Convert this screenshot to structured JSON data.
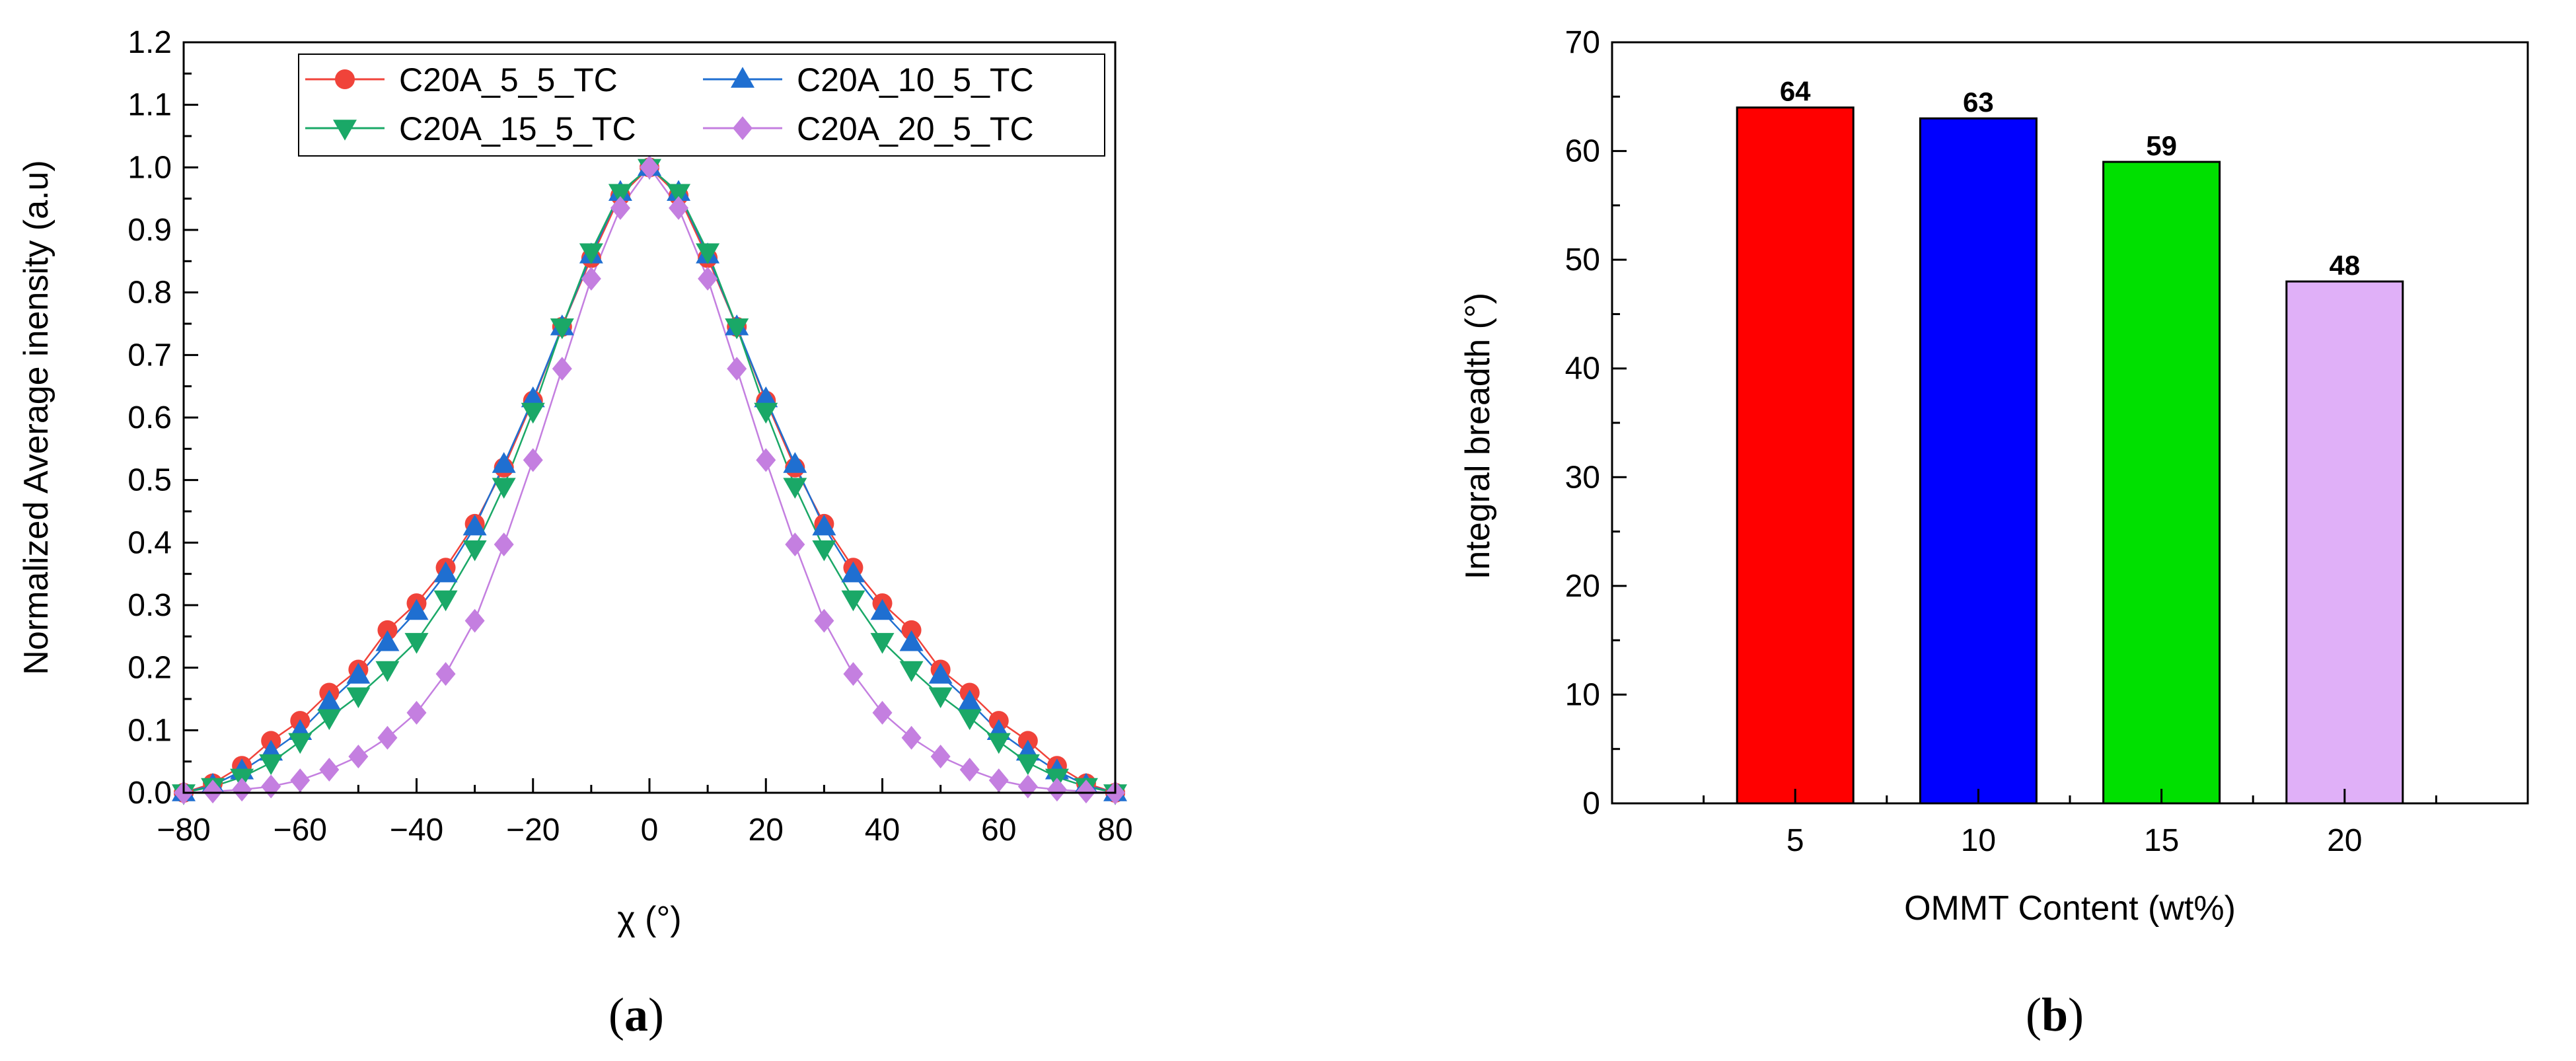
{
  "chart_data": [
    {
      "type": "line",
      "panel_label": {
        "open": "(",
        "letter": "a",
        "close": ")"
      },
      "xlabel": "χ (°)",
      "ylabel": "Normalized Average inensity (a.u)",
      "xlim": [
        -80,
        80
      ],
      "ylim": [
        0,
        1.2
      ],
      "x_ticks": [
        "−80",
        "−60",
        "−40",
        "−20",
        "0",
        "20",
        "40",
        "60",
        "80"
      ],
      "y_ticks": [
        "0.0",
        "0.1",
        "0.2",
        "0.3",
        "0.4",
        "0.5",
        "0.6",
        "0.7",
        "0.8",
        "0.9",
        "1.0",
        "1.1",
        "1.2"
      ],
      "legend_position": "top",
      "x": [
        -80,
        -75,
        -70,
        -65,
        -60,
        -55,
        -50,
        -45,
        -40,
        -35,
        -30,
        -25,
        -20,
        -15,
        -10,
        -5,
        0,
        5,
        10,
        15,
        20,
        25,
        30,
        35,
        40,
        45,
        50,
        55,
        60,
        65,
        70,
        75,
        80
      ],
      "series": [
        {
          "name": "C20A_5_5_TC",
          "color": "#f0433a",
          "marker": "circle",
          "values": [
            0.0,
            0.015,
            0.043,
            0.083,
            0.115,
            0.16,
            0.197,
            0.26,
            0.303,
            0.36,
            0.43,
            0.52,
            0.627,
            0.745,
            0.855,
            0.955,
            1.0,
            0.955,
            0.855,
            0.745,
            0.627,
            0.52,
            0.43,
            0.36,
            0.303,
            0.26,
            0.197,
            0.16,
            0.115,
            0.083,
            0.043,
            0.015,
            0.0
          ]
        },
        {
          "name": "C20A_10_5_TC",
          "color": "#1f6fd1",
          "marker": "triangle-up",
          "values": [
            0.0,
            0.012,
            0.035,
            0.065,
            0.098,
            0.145,
            0.188,
            0.24,
            0.29,
            0.35,
            0.425,
            0.525,
            0.63,
            0.745,
            0.86,
            0.96,
            1.0,
            0.96,
            0.86,
            0.745,
            0.63,
            0.525,
            0.425,
            0.35,
            0.29,
            0.24,
            0.188,
            0.145,
            0.098,
            0.065,
            0.035,
            0.012,
            0.0
          ]
        },
        {
          "name": "C20A_15_5_TC",
          "color": "#1aa867",
          "marker": "triangle-down",
          "values": [
            0.0,
            0.01,
            0.025,
            0.048,
            0.082,
            0.12,
            0.155,
            0.197,
            0.242,
            0.31,
            0.39,
            0.49,
            0.61,
            0.745,
            0.865,
            0.96,
            1.0,
            0.96,
            0.865,
            0.745,
            0.61,
            0.49,
            0.39,
            0.31,
            0.242,
            0.197,
            0.155,
            0.12,
            0.082,
            0.048,
            0.025,
            0.01,
            0.0
          ]
        },
        {
          "name": "C20A_20_5_TC",
          "color": "#c47fe0",
          "marker": "diamond",
          "values": [
            0.0,
            0.002,
            0.005,
            0.01,
            0.02,
            0.037,
            0.058,
            0.088,
            0.128,
            0.19,
            0.275,
            0.397,
            0.532,
            0.678,
            0.822,
            0.935,
            1.0,
            0.935,
            0.822,
            0.678,
            0.532,
            0.397,
            0.275,
            0.19,
            0.128,
            0.088,
            0.058,
            0.037,
            0.02,
            0.01,
            0.005,
            0.002,
            0.0
          ]
        }
      ]
    },
    {
      "type": "bar",
      "panel_label": {
        "open": "(",
        "letter": "b",
        "close": ")"
      },
      "xlabel": "OMMT Content (wt%)",
      "ylabel": "Integral breadth (°)",
      "ylim": [
        0,
        70
      ],
      "y_ticks": [
        "0",
        "10",
        "20",
        "30",
        "40",
        "50",
        "60",
        "70"
      ],
      "categories": [
        "5",
        "10",
        "15",
        "20"
      ],
      "values": [
        64,
        63,
        59,
        48
      ],
      "value_labels": [
        "64",
        "63",
        "59",
        "48"
      ],
      "colors": [
        "#ff0000",
        "#0000ff",
        "#00e000",
        "#e0b0f8"
      ]
    }
  ]
}
